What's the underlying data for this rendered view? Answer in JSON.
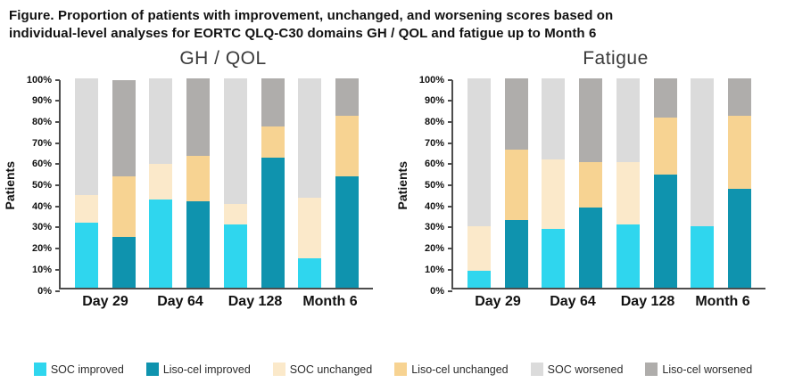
{
  "title_lines": [
    "Figure. Proportion of patients with improvement, unchanged, and worsening scores based on",
    "individual-level analyses for EORTC QLQ-C30 domains GH / QOL and fatigue up to Month 6"
  ],
  "colors": {
    "SOC": {
      "improved": "#2FD6EE",
      "unchanged": "#FBE9CA",
      "worsened": "#DBDBDB"
    },
    "Liso-cel": {
      "improved": "#0F93AE",
      "unchanged": "#F7D392",
      "worsened": "#AFADAB"
    }
  },
  "legend": [
    {
      "label": "SOC improved",
      "color": "#2FD6EE"
    },
    {
      "label": "Liso-cel improved",
      "color": "#0F93AE"
    },
    {
      "label": "SOC unchanged",
      "color": "#FBE9CA"
    },
    {
      "label": "Liso-cel unchanged",
      "color": "#F7D392"
    },
    {
      "label": "SOC worsened",
      "color": "#DBDBDB"
    },
    {
      "label": "Liso-cel worsened",
      "color": "#AFADAB"
    }
  ],
  "chart_data": [
    {
      "type": "bar",
      "stacked": true,
      "title": "GH / QOL",
      "xlabel": "",
      "ylabel": "Patients",
      "ylim": [
        0,
        100
      ],
      "grid": false,
      "yticks": [
        "100%",
        "90%",
        "80%",
        "70%",
        "60%",
        "50%",
        "40%",
        "30%",
        "20%",
        "10%",
        "0%"
      ],
      "categories": [
        "Day 29",
        "Day 64",
        "Day 128",
        "Month 6"
      ],
      "segment_order": [
        "improved",
        "unchanged",
        "worsened"
      ],
      "groups": [
        {
          "label": "Day 29",
          "bars": [
            {
              "name": "SOC",
              "segments": {
                "improved": 31,
                "unchanged": 13,
                "worsened": 56
              }
            },
            {
              "name": "Liso-cel",
              "segments": {
                "improved": 24,
                "unchanged": 29,
                "worsened": 46
              }
            }
          ]
        },
        {
          "label": "Day 64",
          "bars": [
            {
              "name": "SOC",
              "segments": {
                "improved": 42,
                "unchanged": 17,
                "worsened": 41
              }
            },
            {
              "name": "Liso-cel",
              "segments": {
                "improved": 41,
                "unchanged": 22,
                "worsened": 37
              }
            }
          ]
        },
        {
          "label": "Day 128",
          "bars": [
            {
              "name": "SOC",
              "segments": {
                "improved": 30,
                "unchanged": 10,
                "worsened": 60
              }
            },
            {
              "name": "Liso-cel",
              "segments": {
                "improved": 62,
                "unchanged": 15,
                "worsened": 23
              }
            }
          ]
        },
        {
          "label": "Month 6",
          "bars": [
            {
              "name": "SOC",
              "segments": {
                "improved": 14,
                "unchanged": 29,
                "worsened": 57
              }
            },
            {
              "name": "Liso-cel",
              "segments": {
                "improved": 53,
                "unchanged": 29,
                "worsened": 18
              }
            }
          ]
        }
      ]
    },
    {
      "type": "bar",
      "stacked": true,
      "title": "Fatigue",
      "xlabel": "",
      "ylabel": "Patients",
      "ylim": [
        0,
        100
      ],
      "grid": false,
      "yticks": [
        "100%",
        "90%",
        "80%",
        "70%",
        "60%",
        "50%",
        "40%",
        "30%",
        "20%",
        "10%",
        "0%"
      ],
      "categories": [
        "Day 29",
        "Day 64",
        "Day 128",
        "Month 6"
      ],
      "segment_order": [
        "improved",
        "unchanged",
        "worsened"
      ],
      "groups": [
        {
          "label": "Day 29",
          "bars": [
            {
              "name": "SOC",
              "segments": {
                "improved": 8,
                "unchanged": 21,
                "worsened": 71
              }
            },
            {
              "name": "Liso-cel",
              "segments": {
                "improved": 32,
                "unchanged": 34,
                "worsened": 34
              }
            }
          ]
        },
        {
          "label": "Day 64",
          "bars": [
            {
              "name": "SOC",
              "segments": {
                "improved": 28,
                "unchanged": 33,
                "worsened": 39
              }
            },
            {
              "name": "Liso-cel",
              "segments": {
                "improved": 38,
                "unchanged": 22,
                "worsened": 40
              }
            }
          ]
        },
        {
          "label": "Day 128",
          "bars": [
            {
              "name": "SOC",
              "segments": {
                "improved": 30,
                "unchanged": 30,
                "worsened": 40
              }
            },
            {
              "name": "Liso-cel",
              "segments": {
                "improved": 54,
                "unchanged": 27,
                "worsened": 19
              }
            }
          ]
        },
        {
          "label": "Month 6",
          "bars": [
            {
              "name": "SOC",
              "segments": {
                "improved": 29,
                "unchanged": 0,
                "worsened": 71
              }
            },
            {
              "name": "Liso-cel",
              "segments": {
                "improved": 47,
                "unchanged": 35,
                "worsened": 18
              }
            }
          ]
        }
      ]
    }
  ]
}
